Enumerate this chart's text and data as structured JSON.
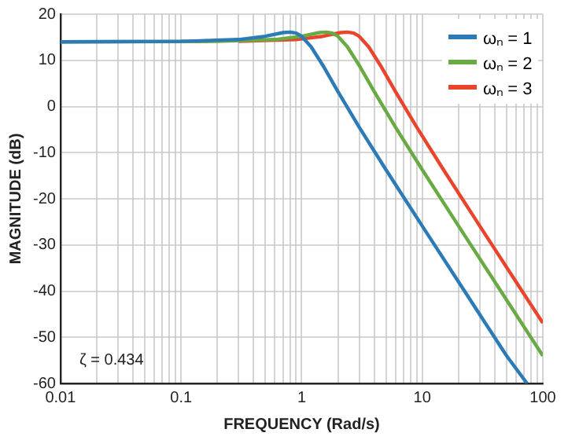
{
  "chart_data": {
    "type": "line",
    "xlabel": "FREQUENCY (Rad/s)",
    "ylabel": "MAGNITUDE (dB)",
    "log": "x",
    "grid": true,
    "legend": "top right",
    "marker": "none",
    "line_style": "solid",
    "xlim": [
      0.01,
      100
    ],
    "ylim": [
      -60,
      20
    ],
    "xticks": [
      0.01,
      {
        "value": 0.02,
        "label": null
      },
      {
        "value": 0.03,
        "label": null
      },
      {
        "value": 0.04,
        "label": null
      },
      {
        "value": 0.05,
        "label": null
      },
      {
        "value": 0.06,
        "label": null
      },
      {
        "value": 0.07,
        "label": null
      },
      {
        "value": 0.08,
        "label": null
      },
      {
        "value": 0.09,
        "label": null
      },
      0.1,
      {
        "value": 0.2,
        "label": null
      },
      {
        "value": 0.3,
        "label": null
      },
      {
        "value": 0.4,
        "label": null
      },
      {
        "value": 0.5,
        "label": null
      },
      {
        "value": 0.6,
        "label": null
      },
      {
        "value": 0.7,
        "label": null
      },
      {
        "value": 0.8,
        "label": null
      },
      {
        "value": 0.9,
        "label": null
      },
      1,
      {
        "value": 2,
        "label": null
      },
      {
        "value": 3,
        "label": null
      },
      {
        "value": 4,
        "label": null
      },
      {
        "value": 5,
        "label": null
      },
      {
        "value": 6,
        "label": null
      },
      {
        "value": 7,
        "label": null
      },
      {
        "value": 8,
        "label": null
      },
      {
        "value": 9,
        "label": null
      },
      10,
      {
        "value": 20,
        "label": null
      },
      {
        "value": 30,
        "label": null
      },
      {
        "value": 40,
        "label": null
      },
      {
        "value": 50,
        "label": null
      },
      {
        "value": 60,
        "label": null
      },
      {
        "value": 70,
        "label": null
      },
      {
        "value": 80,
        "label": null
      },
      {
        "value": 90,
        "label": null
      },
      100
    ],
    "yticks": [
      -60,
      -50,
      -40,
      -30,
      -20,
      -10,
      0,
      10,
      20
    ],
    "annotations": [
      "ζ = 0.434"
    ],
    "series": [
      {
        "name": "ωₙ = 1",
        "color": "#2c7bb6",
        "x": [
          0.01,
          0.1,
          0.3,
          0.5,
          0.7,
          0.8,
          0.9,
          1,
          1.2,
          1.5,
          2,
          3,
          5,
          10,
          20,
          50,
          74
        ],
        "values": [
          14.0,
          14.1,
          14.5,
          15.2,
          16.0,
          16.1,
          15.9,
          15.2,
          12.9,
          8.9,
          3.2,
          -4.5,
          -13.7,
          -25.9,
          -38.0,
          -54.0,
          -60.0
        ]
      },
      {
        "name": "ωₙ = 2",
        "color": "#6aaa45",
        "x": [
          0.01,
          0.2,
          0.6,
          1,
          1.4,
          1.6,
          1.8,
          2,
          2.4,
          3,
          4,
          6,
          10,
          20,
          40,
          100
        ],
        "values": [
          14.0,
          14.1,
          14.5,
          15.2,
          16.0,
          16.1,
          15.9,
          15.2,
          12.9,
          8.9,
          3.2,
          -4.5,
          -13.7,
          -25.9,
          -38.0,
          -54.0
        ]
      },
      {
        "name": "ωₙ = 3",
        "color": "#e8452c",
        "x": [
          0.3,
          0.9,
          1.5,
          2.1,
          2.4,
          2.7,
          3,
          3.6,
          4.5,
          6,
          9,
          15,
          30,
          60,
          100
        ],
        "values": [
          14.1,
          14.5,
          15.2,
          16.0,
          16.1,
          15.9,
          15.2,
          12.9,
          8.9,
          3.2,
          -4.5,
          -13.7,
          -25.9,
          -38.0,
          -46.9
        ]
      }
    ]
  }
}
